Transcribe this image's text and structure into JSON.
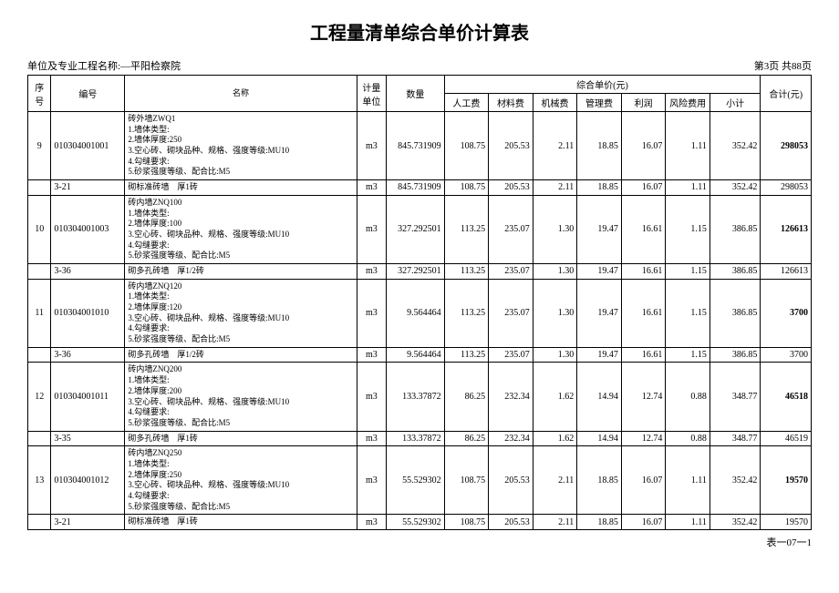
{
  "title": "工程量清单综合单价计算表",
  "projectLabel": "单位及专业工程名称:—平阳检察院",
  "pageInfo": "第3页 共88页",
  "footer": "表一07一1",
  "headers": {
    "seq": "序号",
    "code": "编号",
    "name": "名称",
    "unit": "计量单位",
    "qty": "数量",
    "priceGroup": "综合单价(元)",
    "labor": "人工费",
    "material": "材料费",
    "machine": "机械费",
    "mgmt": "管理费",
    "profit": "利润",
    "risk": "风险费用",
    "subtotal": "小计",
    "total": "合计(元)"
  },
  "rows": [
    {
      "seq": "9",
      "code": "010304001001",
      "name": "砖外墙ZWQ1\n1.墙体类型:\n2.墙体厚度:250\n3.空心砖、砌块品种、规格、强度等级:MU10\n4.勾缝要求:\n5.砂浆强度等级、配合比:M5",
      "unit": "m3",
      "qty": "845.731909",
      "labor": "108.75",
      "material": "205.53",
      "machine": "2.11",
      "mgmt": "18.85",
      "profit": "16.07",
      "risk": "1.11",
      "subtotal": "352.42",
      "total": "298053",
      "bold": true
    },
    {
      "seq": "",
      "code": "3-21",
      "name": "砌标准砖墙　厚1砖",
      "unit": "m3",
      "qty": "845.731909",
      "labor": "108.75",
      "material": "205.53",
      "machine": "2.11",
      "mgmt": "18.85",
      "profit": "16.07",
      "risk": "1.11",
      "subtotal": "352.42",
      "total": "298053",
      "bold": false
    },
    {
      "seq": "10",
      "code": "010304001003",
      "name": "砖内墙ZNQ100\n1.墙体类型:\n2.墙体厚度:100\n3.空心砖、砌块品种、规格、强度等级:MU10\n4.勾缝要求:\n5.砂浆强度等级、配合比:M5",
      "unit": "m3",
      "qty": "327.292501",
      "labor": "113.25",
      "material": "235.07",
      "machine": "1.30",
      "mgmt": "19.47",
      "profit": "16.61",
      "risk": "1.15",
      "subtotal": "386.85",
      "total": "126613",
      "bold": true
    },
    {
      "seq": "",
      "code": "3-36",
      "name": "砌多孔砖墙　厚1/2砖",
      "unit": "m3",
      "qty": "327.292501",
      "labor": "113.25",
      "material": "235.07",
      "machine": "1.30",
      "mgmt": "19.47",
      "profit": "16.61",
      "risk": "1.15",
      "subtotal": "386.85",
      "total": "126613",
      "bold": false
    },
    {
      "seq": "11",
      "code": "010304001010",
      "name": "砖内墙ZNQ120\n1.墙体类型:\n2.墙体厚度:120\n3.空心砖、砌块品种、规格、强度等级:MU10\n4.勾缝要求:\n5.砂浆强度等级、配合比:M5",
      "unit": "m3",
      "qty": "9.564464",
      "labor": "113.25",
      "material": "235.07",
      "machine": "1.30",
      "mgmt": "19.47",
      "profit": "16.61",
      "risk": "1.15",
      "subtotal": "386.85",
      "total": "3700",
      "bold": true
    },
    {
      "seq": "",
      "code": "3-36",
      "name": "砌多孔砖墙　厚1/2砖",
      "unit": "m3",
      "qty": "9.564464",
      "labor": "113.25",
      "material": "235.07",
      "machine": "1.30",
      "mgmt": "19.47",
      "profit": "16.61",
      "risk": "1.15",
      "subtotal": "386.85",
      "total": "3700",
      "bold": false
    },
    {
      "seq": "12",
      "code": "010304001011",
      "name": "砖内墙ZNQ200\n1.墙体类型:\n2.墙体厚度:200\n3.空心砖、砌块品种、规格、强度等级:MU10\n4.勾缝要求:\n5.砂浆强度等级、配合比:M5",
      "unit": "m3",
      "qty": "133.37872",
      "labor": "86.25",
      "material": "232.34",
      "machine": "1.62",
      "mgmt": "14.94",
      "profit": "12.74",
      "risk": "0.88",
      "subtotal": "348.77",
      "total": "46518",
      "bold": true
    },
    {
      "seq": "",
      "code": "3-35",
      "name": "砌多孔砖墙　厚1砖",
      "unit": "m3",
      "qty": "133.37872",
      "labor": "86.25",
      "material": "232.34",
      "machine": "1.62",
      "mgmt": "14.94",
      "profit": "12.74",
      "risk": "0.88",
      "subtotal": "348.77",
      "total": "46519",
      "bold": false
    },
    {
      "seq": "13",
      "code": "010304001012",
      "name": "砖内墙ZNQ250\n1.墙体类型:\n2.墙体厚度:250\n3.空心砖、砌块品种、规格、强度等级:MU10\n4.勾缝要求:\n5.砂浆强度等级、配合比:M5",
      "unit": "m3",
      "qty": "55.529302",
      "labor": "108.75",
      "material": "205.53",
      "machine": "2.11",
      "mgmt": "18.85",
      "profit": "16.07",
      "risk": "1.11",
      "subtotal": "352.42",
      "total": "19570",
      "bold": true
    },
    {
      "seq": "",
      "code": "3-21",
      "name": "砌标准砖墙　厚1砖",
      "unit": "m3",
      "qty": "55.529302",
      "labor": "108.75",
      "material": "205.53",
      "machine": "2.11",
      "mgmt": "18.85",
      "profit": "16.07",
      "risk": "1.11",
      "subtotal": "352.42",
      "total": "19570",
      "bold": false
    }
  ]
}
